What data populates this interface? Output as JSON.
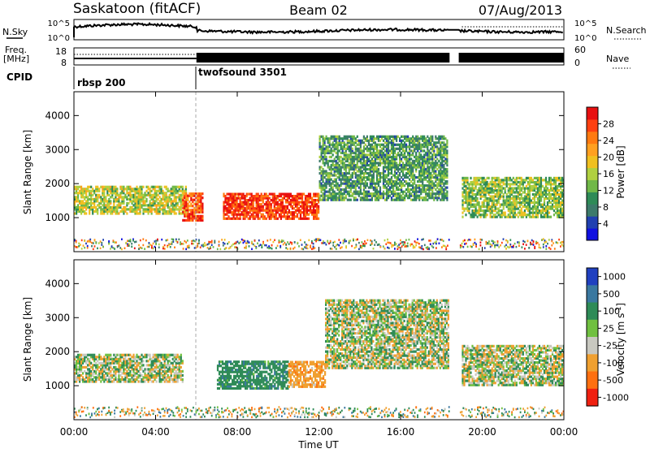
{
  "header": {
    "station": "Saskatoon (fitACF)",
    "beam": "Beam 02",
    "date": "07/Aug/2013"
  },
  "status_panel": {
    "nsky_label": "N.Sky",
    "nsky_top": "10^5",
    "nsky_bottom": "10^0",
    "nsearch_label": "N.Search",
    "nsearch_top": "10^5",
    "nsearch_bottom": "10^0",
    "freq_label": "Freq.",
    "freq_unit": "[MHz]",
    "freq_top": "18",
    "freq_bottom": "8",
    "nave_label": "Nave",
    "nave_top": "60",
    "nave_bottom": "0",
    "cpid_label": "CPID",
    "programs": [
      {
        "name": "rbsp 200",
        "start_hour": 0.0
      },
      {
        "name": "twofsound 3501",
        "start_hour": 6.0
      }
    ],
    "data_gap_hours": [
      18.4,
      18.85
    ]
  },
  "chart_data": [
    {
      "type": "heatmap",
      "name": "power",
      "xlabel": "",
      "ylabel": "Slant Range [km]",
      "xlim": [
        0,
        24
      ],
      "ylim": [
        0,
        4700
      ],
      "y_ticks": [
        "1000",
        "2000",
        "3000",
        "4000"
      ],
      "colorbar_title": "Power [dB]",
      "colorbar_ticks": [
        "4",
        "8",
        "12",
        "16",
        "20",
        "24",
        "28"
      ],
      "colorbar_colors": [
        "#1010e0",
        "#2040b0",
        "#3c7a6a",
        "#2e8b57",
        "#70b848",
        "#b0d040",
        "#f0c020",
        "#ffa020",
        "#ff7a10",
        "#ff4010",
        "#e81010"
      ],
      "approximate_regions": [
        {
          "hours": [
            0.0,
            5.5
          ],
          "range_km": [
            1100,
            1900
          ],
          "power_db": 16
        },
        {
          "hours": [
            5.3,
            6.3
          ],
          "range_km": [
            900,
            1700
          ],
          "power_db": 28
        },
        {
          "hours": [
            7.3,
            12.0
          ],
          "range_km": [
            950,
            1700
          ],
          "power_db": 30
        },
        {
          "hours": [
            12.0,
            18.3
          ],
          "range_km": [
            1500,
            3400
          ],
          "power_db": 10
        },
        {
          "hours": [
            19.0,
            24.0
          ],
          "range_km": [
            1000,
            2200
          ],
          "power_db": 14
        }
      ]
    },
    {
      "type": "heatmap",
      "name": "velocity",
      "xlabel": "Time UT",
      "ylabel": "Slant Range [km]",
      "xlim": [
        0,
        24
      ],
      "ylim": [
        0,
        4700
      ],
      "x_ticks": [
        "00:00",
        "04:00",
        "08:00",
        "12:00",
        "16:00",
        "20:00",
        "00:00"
      ],
      "y_ticks": [
        "1000",
        "2000",
        "3000",
        "4000"
      ],
      "colorbar_title": "Velocity [m s",
      "colorbar_unit_sup": "-1",
      "colorbar_ticks": [
        "1000",
        "500",
        "100",
        "25",
        "-25",
        "-100",
        "-500",
        "-1000"
      ],
      "colorbar_colors": [
        "#2040c0",
        "#3a78a0",
        "#2e8b57",
        "#70c040",
        "#c8c8c0",
        "#f0a030",
        "#ff7010",
        "#f02010"
      ],
      "approximate_regions": [
        {
          "hours": [
            0.0,
            5.3
          ],
          "range_km": [
            1100,
            1900
          ],
          "velocity_ms": 0
        },
        {
          "hours": [
            7.0,
            10.5
          ],
          "range_km": [
            900,
            1700
          ],
          "velocity_ms": 200
        },
        {
          "hours": [
            10.5,
            12.3
          ],
          "range_km": [
            950,
            1700
          ],
          "velocity_ms": -200
        },
        {
          "hours": [
            12.3,
            18.3
          ],
          "range_km": [
            1500,
            3500
          ],
          "velocity_ms": 0
        },
        {
          "hours": [
            19.0,
            24.0
          ],
          "range_km": [
            1000,
            2200
          ],
          "velocity_ms": 0
        }
      ]
    }
  ]
}
